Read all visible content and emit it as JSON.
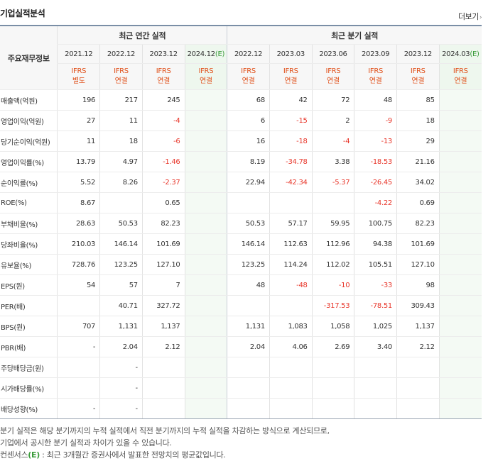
{
  "header": {
    "title": "기업실적분석",
    "more": "더보기"
  },
  "table": {
    "row_header": "주요재무정보",
    "annual_group": "최근 연간 실적",
    "quarter_group": "최근 분기 실적",
    "periods": [
      {
        "date": "2021.12",
        "ifrs": "IFRS",
        "basis": "별도",
        "estimate": false
      },
      {
        "date": "2022.12",
        "ifrs": "IFRS",
        "basis": "연결",
        "estimate": false
      },
      {
        "date": "2023.12",
        "ifrs": "IFRS",
        "basis": "연결",
        "estimate": false
      },
      {
        "date": "2024.12",
        "mark": "(E)",
        "ifrs": "IFRS",
        "basis": "연결",
        "estimate": true
      },
      {
        "date": "2022.12",
        "ifrs": "IFRS",
        "basis": "연결",
        "estimate": false
      },
      {
        "date": "2023.03",
        "ifrs": "IFRS",
        "basis": "연결",
        "estimate": false
      },
      {
        "date": "2023.06",
        "ifrs": "IFRS",
        "basis": "연결",
        "estimate": false
      },
      {
        "date": "2023.09",
        "ifrs": "IFRS",
        "basis": "연결",
        "estimate": false
      },
      {
        "date": "2023.12",
        "ifrs": "IFRS",
        "basis": "연결",
        "estimate": false
      },
      {
        "date": "2024.03",
        "mark": "(E)",
        "ifrs": "IFRS",
        "basis": "연결",
        "estimate": true
      }
    ],
    "rows": [
      {
        "label": "매출액(억원)",
        "values": [
          "196",
          "217",
          "245",
          "",
          "68",
          "42",
          "72",
          "48",
          "85",
          ""
        ]
      },
      {
        "label": "영업이익(억원)",
        "values": [
          "27",
          "11",
          "-4",
          "",
          "6",
          "-15",
          "2",
          "-9",
          "18",
          ""
        ]
      },
      {
        "label": "당기순이익(억원)",
        "values": [
          "11",
          "18",
          "-6",
          "",
          "16",
          "-18",
          "-4",
          "-13",
          "29",
          ""
        ]
      },
      {
        "label": "영업이익률(%)",
        "values": [
          "13.79",
          "4.97",
          "-1.46",
          "",
          "8.19",
          "-34.78",
          "3.38",
          "-18.53",
          "21.16",
          ""
        ]
      },
      {
        "label": "순이익률(%)",
        "values": [
          "5.52",
          "8.26",
          "-2.37",
          "",
          "22.94",
          "-42.34",
          "-5.37",
          "-26.45",
          "34.02",
          ""
        ]
      },
      {
        "label": "ROE(%)",
        "values": [
          "8.67",
          "",
          "0.65",
          "",
          "",
          "",
          "",
          "-4.22",
          "0.69",
          ""
        ]
      },
      {
        "label": "부채비율(%)",
        "values": [
          "28.63",
          "50.53",
          "82.23",
          "",
          "50.53",
          "57.17",
          "59.95",
          "100.75",
          "82.23",
          ""
        ]
      },
      {
        "label": "당좌비율(%)",
        "values": [
          "210.03",
          "146.14",
          "101.69",
          "",
          "146.14",
          "112.63",
          "112.96",
          "94.38",
          "101.69",
          ""
        ]
      },
      {
        "label": "유보율(%)",
        "values": [
          "728.76",
          "123.25",
          "127.10",
          "",
          "123.25",
          "114.24",
          "112.02",
          "105.51",
          "127.10",
          ""
        ]
      },
      {
        "label": "EPS(원)",
        "values": [
          "54",
          "57",
          "7",
          "",
          "48",
          "-48",
          "-10",
          "-33",
          "98",
          ""
        ]
      },
      {
        "label": "PER(배)",
        "values": [
          "",
          "40.71",
          "327.72",
          "",
          "",
          "",
          "-317.53",
          "-78.51",
          "309.43",
          ""
        ]
      },
      {
        "label": "BPS(원)",
        "values": [
          "707",
          "1,131",
          "1,137",
          "",
          "1,131",
          "1,083",
          "1,058",
          "1,025",
          "1,137",
          ""
        ]
      },
      {
        "label": "PBR(배)",
        "values": [
          "-",
          "2.04",
          "2.12",
          "",
          "2.04",
          "4.06",
          "2.69",
          "3.40",
          "2.12",
          ""
        ]
      },
      {
        "label": "주당배당금(원)",
        "values": [
          "",
          "-",
          "",
          "",
          "",
          "",
          "",
          "",
          "",
          ""
        ]
      },
      {
        "label": "시가배당률(%)",
        "values": [
          "",
          "-",
          "",
          "",
          "",
          "",
          "",
          "",
          "",
          ""
        ]
      },
      {
        "label": "배당성향(%)",
        "values": [
          "-",
          "-",
          "",
          "",
          "",
          "",
          "",
          "",
          "",
          ""
        ]
      }
    ]
  },
  "notes": {
    "line1": "분기 실적은 해당 분기까지의 누적 실적에서 직전 분기까지의 누적 실적을 차감하는 방식으로 계산되므로,",
    "line2": "기업에서 공시한 분기 실적과 차이가 있을 수 있습니다.",
    "line3_prefix": "컨센서스",
    "line3_mark": "(E)",
    "line3_rest": " : 최근 3개월간 증권사에서 발표한 전망치의 평균값입니다."
  },
  "colors": {
    "negative": "#e8362a",
    "ifrs": "#e0501a",
    "estimate_mark": "#3a9c3a",
    "estimate_bg": "#f4faf4",
    "header_rule": "#7a8ea6"
  }
}
